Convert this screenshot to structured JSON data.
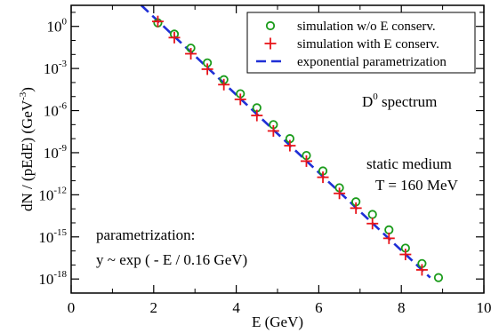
{
  "chart_data": {
    "type": "scatter",
    "xlabel": "E (GeV)",
    "ylabel": "dN / (pEdE) (GeV",
    "ylabel_sup": "-3",
    "ylabel_close": ")",
    "xlim": [
      0,
      10
    ],
    "ylim_log10": [
      -19,
      1.5
    ],
    "log_y": true,
    "grid": false,
    "legend_position": "top-right",
    "x_ticks": [
      "0",
      "2",
      "4",
      "6",
      "8",
      "10"
    ],
    "y_ticks": [
      {
        "base": "10",
        "exp": "0"
      },
      {
        "base": "10",
        "exp": "-3"
      },
      {
        "base": "10",
        "exp": "-6"
      },
      {
        "base": "10",
        "exp": "-9"
      },
      {
        "base": "10",
        "exp": "-12"
      },
      {
        "base": "10",
        "exp": "-15"
      },
      {
        "base": "10",
        "exp": "-18"
      }
    ],
    "annotations": {
      "spectrum": {
        "main": "D",
        "sup": "0",
        "rest": " spectrum"
      },
      "medium": "static medium",
      "temperature": "T = 160 MeV",
      "param_title": "parametrization:",
      "param_formula": "y ~ exp ( - E / 0.16 GeV)"
    },
    "series": [
      {
        "name": "simulation w/o E conserv.",
        "marker": "circle",
        "color": "#1a9b1a",
        "points": [
          [
            2.1,
            0.25
          ],
          [
            2.5,
            -0.55
          ],
          [
            2.9,
            -1.55
          ],
          [
            3.3,
            -2.6
          ],
          [
            3.7,
            -3.8
          ],
          [
            4.1,
            -4.8
          ],
          [
            4.5,
            -5.8
          ],
          [
            4.9,
            -7.0
          ],
          [
            5.3,
            -8.0
          ],
          [
            5.7,
            -9.2
          ],
          [
            6.1,
            -10.3
          ],
          [
            6.5,
            -11.5
          ],
          [
            6.9,
            -12.5
          ],
          [
            7.3,
            -13.4
          ],
          [
            7.7,
            -14.5
          ],
          [
            8.1,
            -15.8
          ],
          [
            8.5,
            -16.9
          ],
          [
            8.9,
            -17.9
          ]
        ]
      },
      {
        "name": "simulation with E conserv.",
        "marker": "plus",
        "color": "#e8141a",
        "points": [
          [
            2.1,
            0.35
          ],
          [
            2.5,
            -0.8
          ],
          [
            2.9,
            -1.95
          ],
          [
            3.3,
            -3.05
          ],
          [
            3.7,
            -4.15
          ],
          [
            4.1,
            -5.2
          ],
          [
            4.5,
            -6.35
          ],
          [
            4.9,
            -7.45
          ],
          [
            5.3,
            -8.5
          ],
          [
            5.7,
            -9.6
          ],
          [
            6.1,
            -10.75
          ],
          [
            6.5,
            -11.9
          ],
          [
            6.9,
            -12.95
          ],
          [
            7.3,
            -14.05
          ],
          [
            7.7,
            -15.1
          ],
          [
            8.1,
            -16.25
          ],
          [
            8.5,
            -17.35
          ]
        ]
      },
      {
        "name": "exponential parametrization",
        "marker": "dashed-line",
        "color": "#1f2fd6",
        "points": [
          [
            1.7,
            1.5
          ],
          [
            8.7,
            -17.9
          ]
        ]
      }
    ]
  }
}
